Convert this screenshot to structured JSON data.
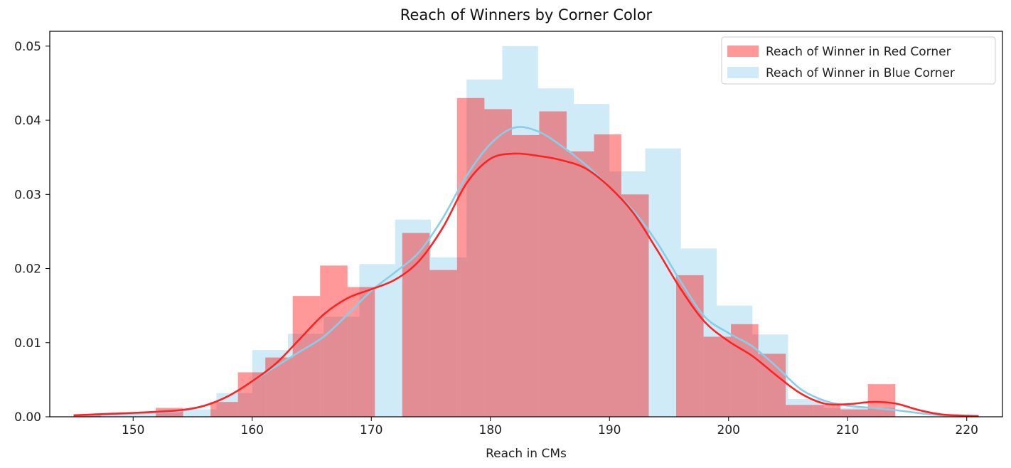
{
  "chart_data": {
    "type": "histogram",
    "title": "Reach of Winners by Corner Color",
    "xlabel": "Reach in CMs",
    "ylabel": "",
    "xlim": [
      143,
      223
    ],
    "ylim": [
      0,
      0.052
    ],
    "xticks": [
      150,
      160,
      170,
      180,
      190,
      200,
      210,
      220
    ],
    "yticks": [
      0.0,
      0.01,
      0.02,
      0.03,
      0.04,
      0.05
    ],
    "ytick_labels": [
      "0.00",
      "0.01",
      "0.02",
      "0.03",
      "0.04",
      "0.05"
    ],
    "grid": false,
    "legend_position": "top-right",
    "series": [
      {
        "name": "Reach of Winner in Red Corner",
        "color": "#ff0000",
        "fill_alpha": 0.4,
        "bins": [
          {
            "x0": 145.0,
            "x1": 147.3,
            "y": 0.0002
          },
          {
            "x0": 147.3,
            "x1": 149.6,
            "y": 0.0
          },
          {
            "x0": 149.6,
            "x1": 151.9,
            "y": 0.0
          },
          {
            "x0": 151.9,
            "x1": 154.2,
            "y": 0.0012
          },
          {
            "x0": 154.2,
            "x1": 156.5,
            "y": 0.0
          },
          {
            "x0": 156.5,
            "x1": 158.8,
            "y": 0.002
          },
          {
            "x0": 158.8,
            "x1": 161.1,
            "y": 0.006
          },
          {
            "x0": 161.1,
            "x1": 163.4,
            "y": 0.008
          },
          {
            "x0": 163.4,
            "x1": 165.7,
            "y": 0.0163
          },
          {
            "x0": 165.7,
            "x1": 168.0,
            "y": 0.0204
          },
          {
            "x0": 168.0,
            "x1": 170.3,
            "y": 0.0175
          },
          {
            "x0": 170.3,
            "x1": 172.6,
            "y": 0.0
          },
          {
            "x0": 172.6,
            "x1": 174.9,
            "y": 0.0248
          },
          {
            "x0": 174.9,
            "x1": 177.2,
            "y": 0.0198
          },
          {
            "x0": 177.2,
            "x1": 179.5,
            "y": 0.043
          },
          {
            "x0": 179.5,
            "x1": 181.8,
            "y": 0.0415
          },
          {
            "x0": 181.8,
            "x1": 184.1,
            "y": 0.038
          },
          {
            "x0": 184.1,
            "x1": 186.4,
            "y": 0.0412
          },
          {
            "x0": 186.4,
            "x1": 188.7,
            "y": 0.0358
          },
          {
            "x0": 188.7,
            "x1": 191.0,
            "y": 0.0381
          },
          {
            "x0": 191.0,
            "x1": 193.3,
            "y": 0.03
          },
          {
            "x0": 193.3,
            "x1": 195.6,
            "y": 0.0
          },
          {
            "x0": 195.6,
            "x1": 197.9,
            "y": 0.0191
          },
          {
            "x0": 197.9,
            "x1": 200.2,
            "y": 0.0108
          },
          {
            "x0": 200.2,
            "x1": 202.5,
            "y": 0.0125
          },
          {
            "x0": 202.5,
            "x1": 204.8,
            "y": 0.0085
          },
          {
            "x0": 204.8,
            "x1": 207.1,
            "y": 0.0016
          },
          {
            "x0": 207.1,
            "x1": 209.4,
            "y": 0.0016
          },
          {
            "x0": 209.4,
            "x1": 211.7,
            "y": 0.001
          },
          {
            "x0": 211.7,
            "x1": 214.0,
            "y": 0.0044
          }
        ],
        "kde": [
          [
            145,
            0.0002
          ],
          [
            148,
            0.0004
          ],
          [
            151,
            0.0006
          ],
          [
            154,
            0.0009
          ],
          [
            156,
            0.0015
          ],
          [
            158,
            0.0028
          ],
          [
            160,
            0.0048
          ],
          [
            162,
            0.0072
          ],
          [
            164,
            0.0105
          ],
          [
            166,
            0.0138
          ],
          [
            168,
            0.016
          ],
          [
            170,
            0.0172
          ],
          [
            172,
            0.0185
          ],
          [
            174,
            0.021
          ],
          [
            176,
            0.0255
          ],
          [
            178,
            0.0315
          ],
          [
            180,
            0.0348
          ],
          [
            182,
            0.0355
          ],
          [
            184,
            0.0352
          ],
          [
            186,
            0.0346
          ],
          [
            188,
            0.0335
          ],
          [
            190,
            0.031
          ],
          [
            192,
            0.0275
          ],
          [
            194,
            0.0225
          ],
          [
            196,
            0.0172
          ],
          [
            198,
            0.0128
          ],
          [
            200,
            0.0102
          ],
          [
            202,
            0.0082
          ],
          [
            204,
            0.0056
          ],
          [
            206,
            0.0032
          ],
          [
            208,
            0.0018
          ],
          [
            210,
            0.0017
          ],
          [
            212,
            0.002
          ],
          [
            214,
            0.0018
          ],
          [
            216,
            0.0009
          ],
          [
            218,
            0.0003
          ],
          [
            221,
            0.0001
          ]
        ]
      },
      {
        "name": "Reach of Winner in Blue Corner",
        "color": "#87ceeb",
        "fill_alpha": 0.4,
        "bins": [
          {
            "x0": 145.0,
            "x1": 148.0,
            "y": 0.0002
          },
          {
            "x0": 148.0,
            "x1": 151.0,
            "y": 0.0004
          },
          {
            "x0": 151.0,
            "x1": 154.0,
            "y": 0.0006
          },
          {
            "x0": 154.0,
            "x1": 157.0,
            "y": 0.001
          },
          {
            "x0": 157.0,
            "x1": 160.0,
            "y": 0.0032
          },
          {
            "x0": 160.0,
            "x1": 163.0,
            "y": 0.009
          },
          {
            "x0": 163.0,
            "x1": 166.0,
            "y": 0.0112
          },
          {
            "x0": 166.0,
            "x1": 169.0,
            "y": 0.0135
          },
          {
            "x0": 169.0,
            "x1": 172.0,
            "y": 0.0206
          },
          {
            "x0": 172.0,
            "x1": 175.0,
            "y": 0.0266
          },
          {
            "x0": 175.0,
            "x1": 178.0,
            "y": 0.0215
          },
          {
            "x0": 178.0,
            "x1": 181.0,
            "y": 0.0455
          },
          {
            "x0": 181.0,
            "x1": 184.0,
            "y": 0.05
          },
          {
            "x0": 184.0,
            "x1": 187.0,
            "y": 0.0443
          },
          {
            "x0": 187.0,
            "x1": 190.0,
            "y": 0.0422
          },
          {
            "x0": 190.0,
            "x1": 193.0,
            "y": 0.0331
          },
          {
            "x0": 193.0,
            "x1": 196.0,
            "y": 0.0362
          },
          {
            "x0": 196.0,
            "x1": 199.0,
            "y": 0.0227
          },
          {
            "x0": 199.0,
            "x1": 202.0,
            "y": 0.015
          },
          {
            "x0": 202.0,
            "x1": 205.0,
            "y": 0.0111
          },
          {
            "x0": 205.0,
            "x1": 208.0,
            "y": 0.0024
          },
          {
            "x0": 208.0,
            "x1": 211.0,
            "y": 0.0012
          },
          {
            "x0": 211.0,
            "x1": 214.0,
            "y": 0.0012
          }
        ],
        "kde": [
          [
            145,
            0.0002
          ],
          [
            148,
            0.0003
          ],
          [
            151,
            0.0005
          ],
          [
            154,
            0.0008
          ],
          [
            156,
            0.0015
          ],
          [
            158,
            0.0028
          ],
          [
            160,
            0.0048
          ],
          [
            162,
            0.0068
          ],
          [
            164,
            0.0088
          ],
          [
            166,
            0.0108
          ],
          [
            168,
            0.0138
          ],
          [
            170,
            0.017
          ],
          [
            172,
            0.0195
          ],
          [
            174,
            0.0222
          ],
          [
            176,
            0.0268
          ],
          [
            178,
            0.0325
          ],
          [
            180,
            0.0368
          ],
          [
            182,
            0.039
          ],
          [
            184,
            0.0385
          ],
          [
            186,
            0.0365
          ],
          [
            188,
            0.034
          ],
          [
            190,
            0.031
          ],
          [
            192,
            0.0278
          ],
          [
            194,
            0.0235
          ],
          [
            196,
            0.0182
          ],
          [
            198,
            0.0135
          ],
          [
            200,
            0.0113
          ],
          [
            202,
            0.0095
          ],
          [
            204,
            0.0068
          ],
          [
            206,
            0.0038
          ],
          [
            208,
            0.0022
          ],
          [
            210,
            0.0015
          ],
          [
            212,
            0.0012
          ],
          [
            214,
            0.0009
          ],
          [
            216,
            0.0005
          ],
          [
            218,
            0.0002
          ],
          [
            221,
            0.0001
          ]
        ]
      }
    ]
  }
}
